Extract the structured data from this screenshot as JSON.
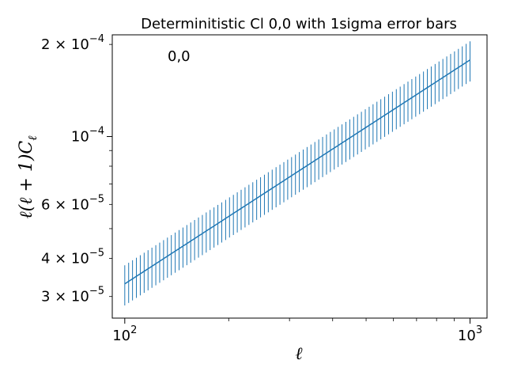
{
  "chart_data": {
    "type": "line",
    "title": "Determinitistic Cl 0,0 with 1sigma error bars",
    "annotation": "0,0",
    "xlabel": "ℓ",
    "ylabel": "ℓ(ℓ + 1)C_ℓ",
    "xscale": "log",
    "yscale": "log",
    "xlim": [
      92,
      1120
    ],
    "ylim": [
      2.55e-05,
      0.000215
    ],
    "x_tick_labels": [
      {
        "value": 100,
        "base": "10",
        "exp": "2"
      },
      {
        "value": 1000,
        "base": "10",
        "exp": "3"
      }
    ],
    "y_tick_labels": [
      {
        "value": 3e-05,
        "mant": "3 × 10",
        "exp": "−5"
      },
      {
        "value": 4e-05,
        "mant": "4 × 10",
        "exp": "−5"
      },
      {
        "value": 6e-05,
        "mant": "6 × 10",
        "exp": "−5"
      },
      {
        "value": 0.0001,
        "mant": "10",
        "exp": "−4"
      },
      {
        "value": 0.0002,
        "mant": "2 × 10",
        "exp": "−4"
      }
    ],
    "grid": false,
    "color": "#1f77b4",
    "series": [
      {
        "x_range": [
          100,
          1000
        ],
        "n_points": 90,
        "y_start": 3.3e-05,
        "y_end": 0.000178,
        "rel_err_low": 0.15,
        "rel_err_high": 0.15
      }
    ]
  }
}
